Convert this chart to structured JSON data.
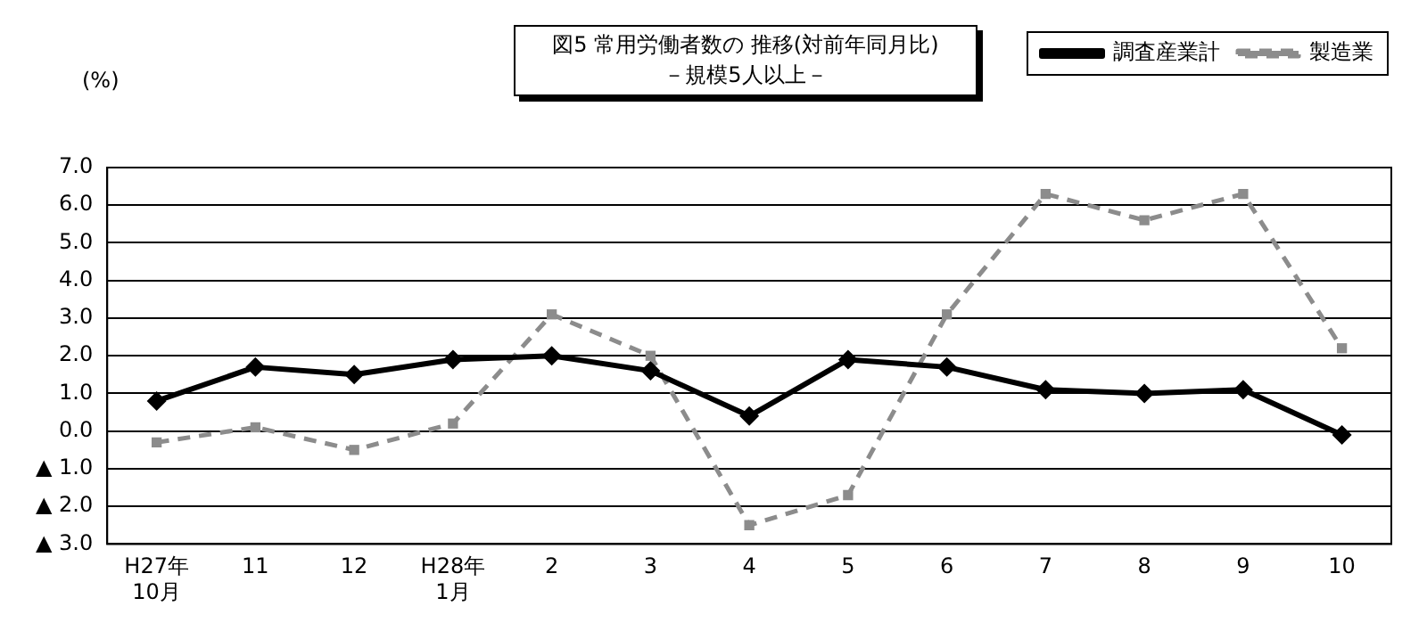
{
  "chart_data": {
    "type": "line",
    "title": "図5  常用労働者数の 推移(対前年同月比)",
    "subtitle": "－規模5人以上－",
    "ylabel": "(%)",
    "categories": [
      "H27年\n10月",
      "11",
      "12",
      "H28年\n1月",
      "2",
      "3",
      "4",
      "5",
      "6",
      "7",
      "8",
      "9",
      "10"
    ],
    "series": [
      {
        "name": "調査産業計",
        "color": "#000000",
        "marker": "diamond",
        "line_style": "solid",
        "values": [
          0.8,
          1.7,
          1.5,
          1.9,
          2.0,
          1.6,
          0.4,
          1.9,
          1.7,
          1.1,
          1.0,
          1.1,
          -0.1
        ]
      },
      {
        "name": "製造業",
        "color": "#8c8c8c",
        "marker": "square",
        "line_style": "dashed",
        "values": [
          -0.3,
          0.1,
          -0.5,
          0.2,
          3.1,
          2.0,
          -2.5,
          -1.7,
          3.1,
          6.3,
          5.6,
          6.3,
          2.2
        ]
      }
    ],
    "ylim": [
      -3,
      7
    ],
    "yticks": [
      {
        "value": -3,
        "label": "▲ 3.0"
      },
      {
        "value": -2,
        "label": "▲ 2.0"
      },
      {
        "value": -1,
        "label": "▲ 1.0"
      },
      {
        "value": 0,
        "label": "0.0"
      },
      {
        "value": 1,
        "label": "1.0"
      },
      {
        "value": 2,
        "label": "2.0"
      },
      {
        "value": 3,
        "label": "3.0"
      },
      {
        "value": 4,
        "label": "4.0"
      },
      {
        "value": 5,
        "label": "5.0"
      },
      {
        "value": 6,
        "label": "6.0"
      },
      {
        "value": 7,
        "label": "7.0"
      }
    ],
    "grid": "y",
    "legend": "top right"
  }
}
